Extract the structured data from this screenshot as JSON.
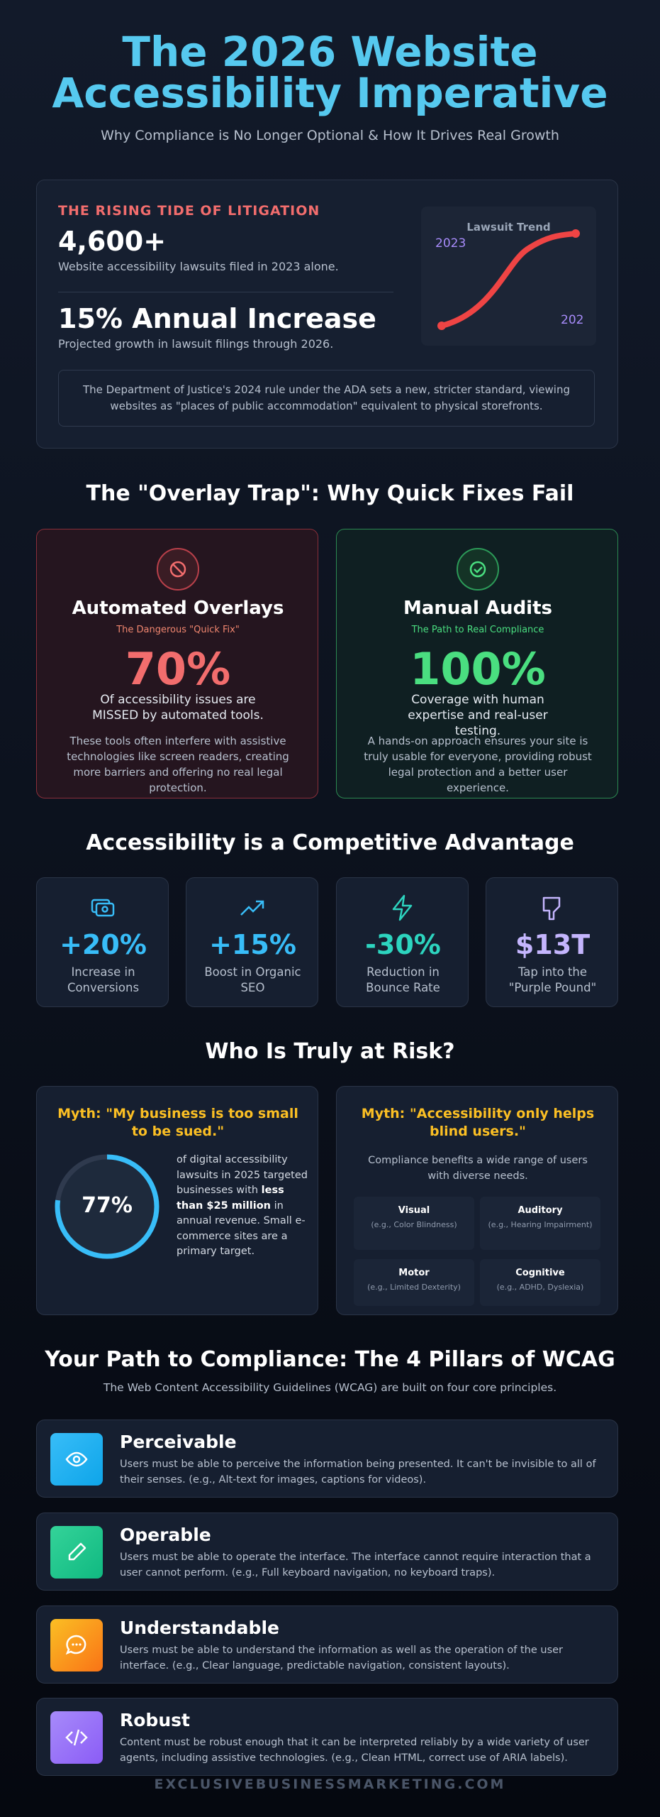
{
  "header": {
    "title": "The 2026 Website Accessibility Imperative",
    "subtitle": "Why Compliance is No Longer Optional & How It Drives Real Growth"
  },
  "litigation": {
    "kicker": "THE RISING TIDE OF LITIGATION",
    "stat1": "4,600+",
    "stat1_text": "Website accessibility lawsuits filed in 2023 alone.",
    "stat2": "15% Annual Increase",
    "stat2_text": "Projected growth in lawsuit filings through 2026.",
    "chart": {
      "title": "Lawsuit Trend",
      "start_label": "2023",
      "end_label": "202"
    },
    "note": "The Department of Justice's 2024 rule under the ADA sets a new, stricter standard, viewing websites as \"places of public accommodation\" equivalent to physical storefronts."
  },
  "overlay": {
    "heading": "The \"Overlay Trap\": Why Quick Fixes Fail",
    "cards": [
      {
        "title": "Automated Overlays",
        "subtitle": "The Dangerous \"Quick Fix\"",
        "stat": "70%",
        "stat_text": "Of accessibility issues are MISSED by automated tools.",
        "body": "These tools often interfere with assistive technologies like screen readers, creating more barriers and offering no real legal protection."
      },
      {
        "title": "Manual Audits",
        "subtitle": "The Path to Real Compliance",
        "stat": "100%",
        "stat_text": "Coverage with human expertise and real-user testing.",
        "body": "A hands-on approach ensures your site is truly usable for everyone, providing robust legal protection and a better user experience."
      }
    ]
  },
  "advantage": {
    "heading": "Accessibility is a Competitive Advantage",
    "stats": [
      {
        "value": "+20%",
        "label": "Increase in Conversions"
      },
      {
        "value": "+15%",
        "label": "Boost in Organic SEO"
      },
      {
        "value": "-30%",
        "label": "Reduction in Bounce Rate"
      },
      {
        "value": "$13T",
        "label": "Tap into the \"Purple Pound\""
      }
    ]
  },
  "risk": {
    "heading": "Who Is Truly at Risk?",
    "small": {
      "myth": "Myth: \"My business is too small to be sued.\"",
      "stat": "77%",
      "text_before": "of digital accessibility lawsuits in 2025 targeted businesses with",
      "text_bold": "less than $25 million",
      "text_after": "in annual revenue. Small e-commerce sites are a primary target."
    },
    "blind": {
      "myth": "Myth: \"Accessibility only helps blind users.\"",
      "intro": "Compliance benefits a wide range of users with diverse needs.",
      "groups": [
        {
          "name": "Visual",
          "example": "(e.g., Color Blindness)"
        },
        {
          "name": "Auditory",
          "example": "(e.g., Hearing Impairment)"
        },
        {
          "name": "Motor",
          "example": "(e.g., Limited Dexterity)"
        },
        {
          "name": "Cognitive",
          "example": "(e.g., ADHD, Dyslexia)"
        }
      ]
    }
  },
  "pillars": {
    "heading": "Your Path to Compliance: The 4 Pillars of WCAG",
    "subtitle": "The Web Content Accessibility Guidelines (WCAG) are built on four core principles.",
    "items": [
      {
        "title": "Perceivable",
        "text": "Users must be able to perceive the information being presented. It can't be invisible to all of their senses. (e.g., Alt-text for images, captions for videos)."
      },
      {
        "title": "Operable",
        "text": "Users must be able to operate the interface. The interface cannot require interaction that a user cannot perform. (e.g., Full keyboard navigation, no keyboard traps)."
      },
      {
        "title": "Understandable",
        "text": "Users must be able to understand the information as well as the operation of the user interface. (e.g., Clear language, predictable navigation, consistent layouts)."
      },
      {
        "title": "Robust",
        "text": "Content must be robust enough that it can be interpreted reliably by a wide variety of user agents, including assistive technologies. (e.g., Clean HTML, correct use of ARIA labels)."
      }
    ]
  },
  "footer": "EXCLUSIVEBUSINESSMARKETING.COM"
}
